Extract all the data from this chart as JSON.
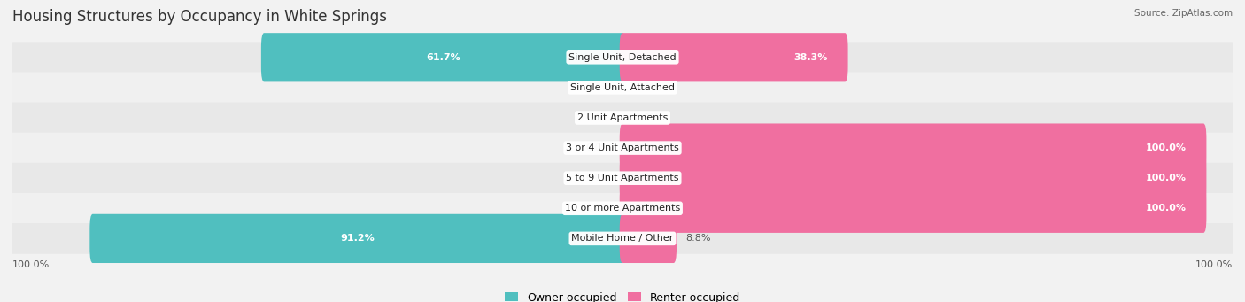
{
  "title": "Housing Structures by Occupancy in White Springs",
  "source": "Source: ZipAtlas.com",
  "categories": [
    "Single Unit, Detached",
    "Single Unit, Attached",
    "2 Unit Apartments",
    "3 or 4 Unit Apartments",
    "5 to 9 Unit Apartments",
    "10 or more Apartments",
    "Mobile Home / Other"
  ],
  "owner_pct": [
    61.7,
    0.0,
    0.0,
    0.0,
    0.0,
    0.0,
    91.2
  ],
  "renter_pct": [
    38.3,
    0.0,
    0.0,
    100.0,
    100.0,
    100.0,
    8.8
  ],
  "owner_color": "#50bfbf",
  "renter_color": "#f06fa0",
  "bg_color": "#f2f2f2",
  "row_bg_even": "#e8e8e8",
  "row_bg_odd": "#f0f0f0",
  "bar_height": 0.62,
  "title_fontsize": 12,
  "label_fontsize": 8,
  "tick_fontsize": 8,
  "legend_fontsize": 9,
  "pct_label_fontsize": 8
}
